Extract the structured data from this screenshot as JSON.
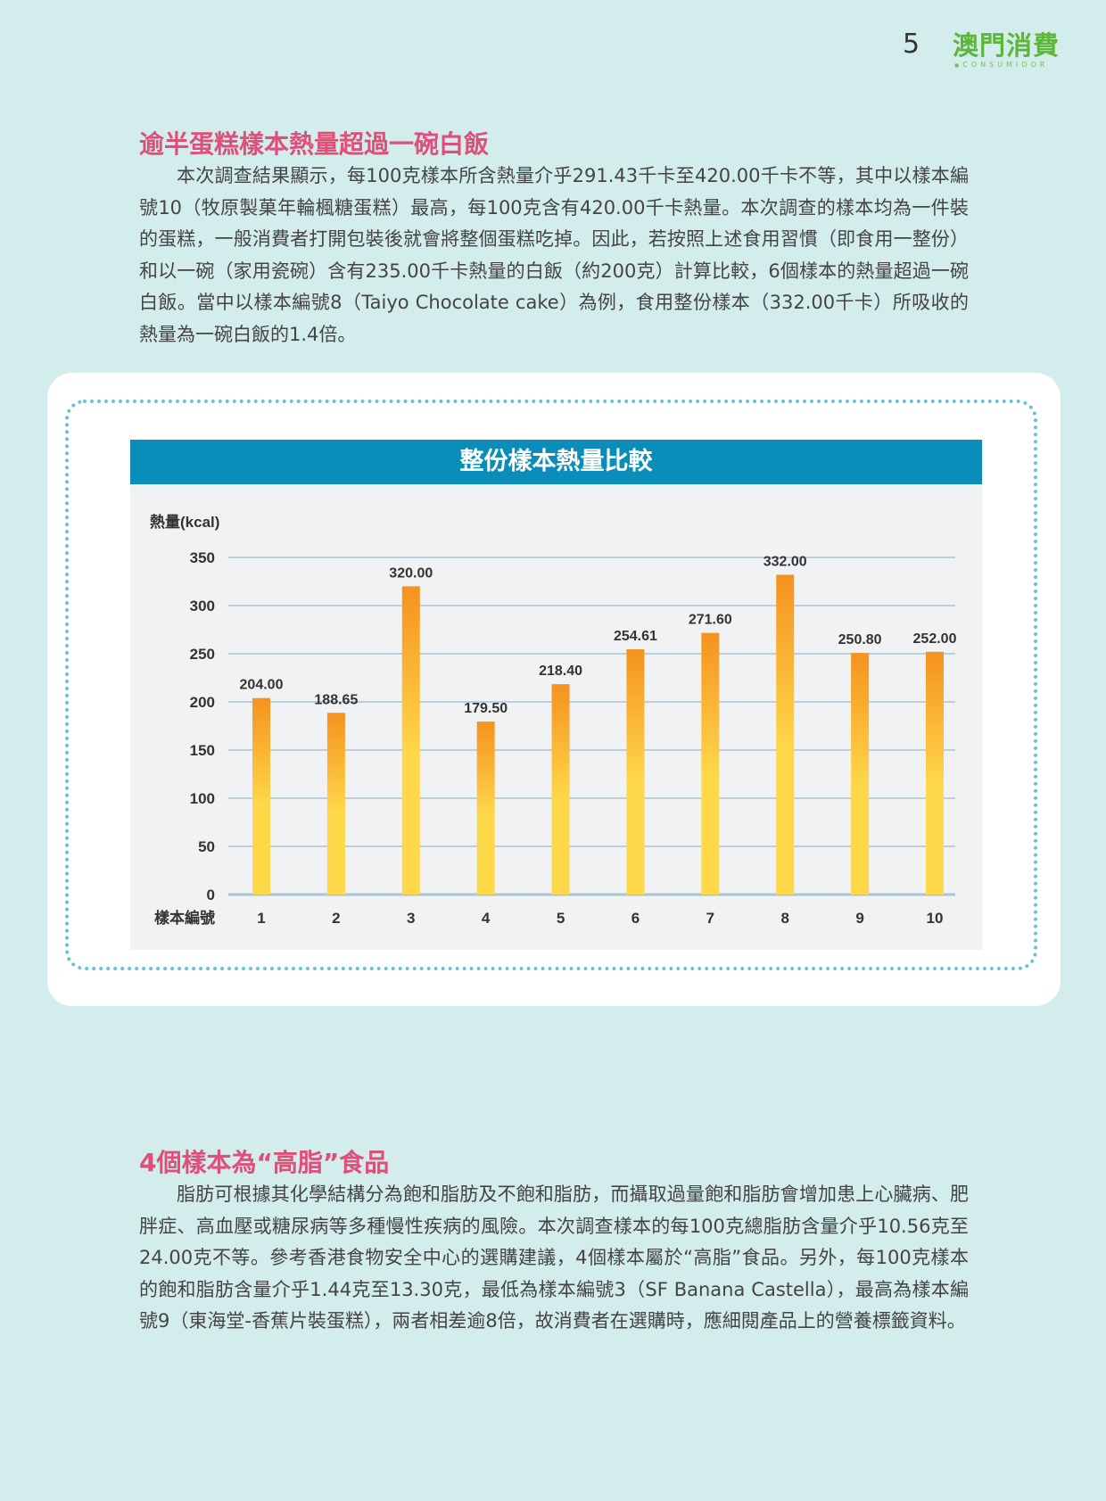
{
  "header": {
    "page_number": "5",
    "logo_text": "澳門消費",
    "logo_subtext": "CONSUMIDOR"
  },
  "section1": {
    "heading": "逾半蛋糕樣本熱量超過一碗白飯",
    "paragraph": "本次調查結果顯示，每100克樣本所含熱量介乎291.43千卡至420.00千卡不等，其中以樣本編號10（牧原製菓年輪楓糖蛋糕）最高，每100克含有420.00千卡熱量。本次調查的樣本均為一件裝的蛋糕，一般消費者打開包裝後就會將整個蛋糕吃掉。因此，若按照上述食用習慣（即食用一整份）和以一碗（家用瓷碗）含有235.00千卡熱量的白飯（約200克）計算比較，6個樣本的熱量超過一碗白飯。當中以樣本編號8（Taiyo Chocolate cake）為例，食用整份樣本（332.00千卡）所吸收的熱量為一碗白飯的1.4倍。"
  },
  "section2": {
    "heading": "4個樣本為“高脂”食品",
    "paragraph": "脂肪可根據其化學結構分為飽和脂肪及不飽和脂肪，而攝取過量飽和脂肪會增加患上心臟病、肥胖症、高血壓或糖尿病等多種慢性疾病的風險。本次調查樣本的每100克總脂肪含量介乎10.56克至24.00克不等。參考香港食物安全中心的選購建議，4個樣本屬於“高脂”食品。另外，每100克樣本的飽和脂肪含量介乎1.44克至13.30克，最低為樣本編號3（SF Banana Castella），最高為樣本編號9（東海堂-香蕉片裝蛋糕），兩者相差逾8倍，故消費者在選購時，應細閱產品上的營養標籤資料。"
  },
  "chart_data": {
    "type": "bar",
    "title": "整份樣本熱量比較",
    "ylabel": "熱量(kcal)",
    "xlabel": "樣本編號",
    "categories": [
      "1",
      "2",
      "3",
      "4",
      "5",
      "6",
      "7",
      "8",
      "9",
      "10"
    ],
    "values": [
      204.0,
      188.65,
      320.0,
      179.5,
      218.4,
      254.61,
      271.6,
      332.0,
      250.8,
      252.0
    ],
    "value_labels": [
      "204.00",
      "188.65",
      "320.00",
      "179.50",
      "218.40",
      "254.61",
      "271.60",
      "332.00",
      "250.80",
      "252.00"
    ],
    "ylim": [
      0,
      350
    ],
    "yticks": [
      0,
      50,
      100,
      150,
      200,
      250,
      300,
      350
    ],
    "grid": true,
    "colors": {
      "bar_top": "#f5921f",
      "bar_bottom": "#ffd84a",
      "grid": "#a9c4d4",
      "header_bg": "#0a8db8"
    }
  }
}
